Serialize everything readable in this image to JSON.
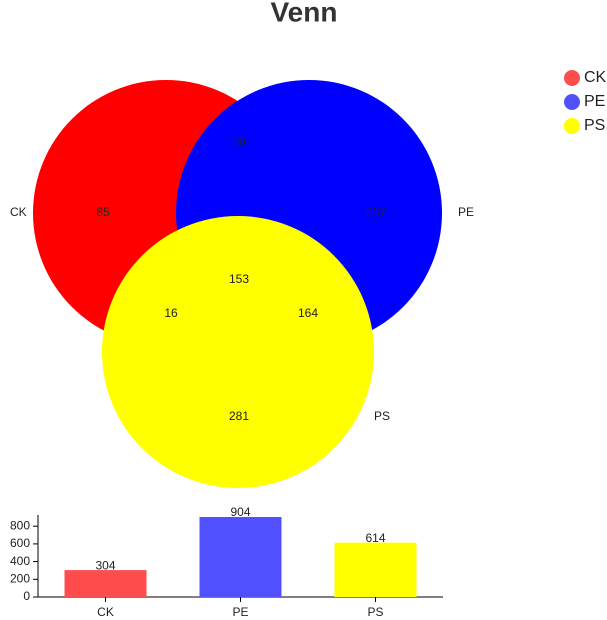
{
  "chart_data": [
    {
      "type": "venn",
      "title": "Venn",
      "legend": "top-right",
      "sets": [
        {
          "name": "CK",
          "color": "#ff0000",
          "legend_color": "#ff4d4d"
        },
        {
          "name": "PE",
          "color": "#0000ff",
          "legend_color": "#5050ff"
        },
        {
          "name": "PS",
          "color": "#ffff00",
          "legend_color": "#ffff00"
        }
      ],
      "regions": [
        {
          "sets": [
            "CK"
          ],
          "value": 85
        },
        {
          "sets": [
            "CK",
            "PE"
          ],
          "value": 50
        },
        {
          "sets": [
            "PE"
          ],
          "value": 537
        },
        {
          "sets": [
            "CK",
            "PE",
            "PS"
          ],
          "value": 153
        },
        {
          "sets": [
            "CK",
            "PS"
          ],
          "value": 16
        },
        {
          "sets": [
            "PE",
            "PS"
          ],
          "value": 164
        },
        {
          "sets": [
            "PS"
          ],
          "value": 281
        }
      ]
    },
    {
      "type": "bar",
      "categories": [
        "CK",
        "PE",
        "PS"
      ],
      "values": [
        304,
        904,
        614
      ],
      "colors": [
        "#ff4d4d",
        "#5050ff",
        "#ffff00"
      ],
      "ylim": [
        0,
        904
      ],
      "yticks": [
        0,
        200,
        400,
        600,
        800
      ]
    }
  ]
}
